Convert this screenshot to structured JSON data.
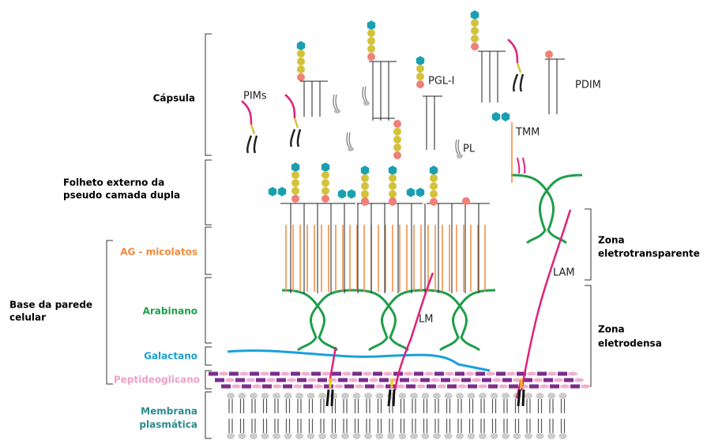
{
  "labels": {
    "capsula": "Cápsula",
    "folheto": [
      "Folheto externo da",
      "pseudo camada dupla"
    ],
    "ag": "AG - micolatos",
    "arabinano": "Arabinano",
    "galactano": "Galactano",
    "peptideoglicano": "Peptideoglicano",
    "membrana": [
      "Membrana",
      "plasmática"
    ],
    "base": [
      "Base da parede",
      "celular"
    ]
  },
  "zones": {
    "eletrotransparente": [
      "Zona",
      "eletrotransparente"
    ],
    "eletrodensa": [
      "Zona",
      "eletrodensa"
    ]
  },
  "molecules": {
    "pims": "PIMs",
    "pgl": "PGL-I",
    "pdim": "PDIM",
    "pl": "PL",
    "tmm": "TMM",
    "lm": "LM",
    "lam": "LAM"
  }
}
